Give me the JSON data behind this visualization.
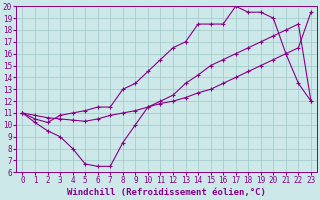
{
  "background_color": "#cce8e8",
  "grid_color": "#a0c8c8",
  "line_color": "#880088",
  "xlabel": "Windchill (Refroidissement éolien,°C)",
  "xlabel_fontsize": 6.5,
  "xtick_fontsize": 5.5,
  "ytick_fontsize": 5.5,
  "xlim": [
    -0.5,
    23.5
  ],
  "ylim": [
    6,
    20
  ],
  "xticks": [
    0,
    1,
    2,
    3,
    4,
    5,
    6,
    7,
    8,
    9,
    10,
    11,
    12,
    13,
    14,
    15,
    16,
    17,
    18,
    19,
    20,
    21,
    22,
    23
  ],
  "yticks": [
    6,
    7,
    8,
    9,
    10,
    11,
    12,
    13,
    14,
    15,
    16,
    17,
    18,
    19,
    20
  ],
  "line_dip_x": [
    0,
    1,
    2,
    3,
    4,
    5,
    6,
    7,
    8,
    9,
    10,
    11,
    12,
    13,
    14,
    15,
    16,
    17,
    18,
    19,
    20,
    21,
    22,
    23
  ],
  "line_dip_y": [
    11.0,
    10.2,
    9.5,
    9.0,
    8.0,
    6.7,
    6.5,
    6.5,
    8.5,
    10.0,
    11.5,
    12.0,
    12.5,
    13.5,
    14.2,
    15.0,
    15.5,
    16.0,
    16.5,
    17.0,
    17.5,
    18.0,
    18.5,
    12.0
  ],
  "line_peak_x": [
    0,
    1,
    2,
    3,
    4,
    5,
    6,
    7,
    8,
    9,
    10,
    11,
    12,
    13,
    14,
    15,
    16,
    17,
    18,
    19,
    20,
    21,
    22,
    23
  ],
  "line_peak_y": [
    11.0,
    10.5,
    10.2,
    10.8,
    11.0,
    11.2,
    11.5,
    11.5,
    13.0,
    13.5,
    14.5,
    15.5,
    16.5,
    17.0,
    18.5,
    18.5,
    18.5,
    20.0,
    19.5,
    19.5,
    19.0,
    16.0,
    13.5,
    12.0
  ],
  "line_flat_x": [
    0,
    1,
    2,
    3,
    4,
    5,
    6,
    7,
    8,
    9,
    10,
    11,
    12,
    13,
    14,
    15,
    16,
    17,
    18,
    19,
    20,
    21,
    22,
    23
  ],
  "line_flat_y": [
    11.0,
    10.8,
    10.6,
    10.5,
    10.4,
    10.3,
    10.5,
    10.8,
    11.0,
    11.2,
    11.5,
    11.8,
    12.0,
    12.3,
    12.7,
    13.0,
    13.5,
    14.0,
    14.5,
    15.0,
    15.5,
    16.0,
    16.5,
    19.5
  ]
}
